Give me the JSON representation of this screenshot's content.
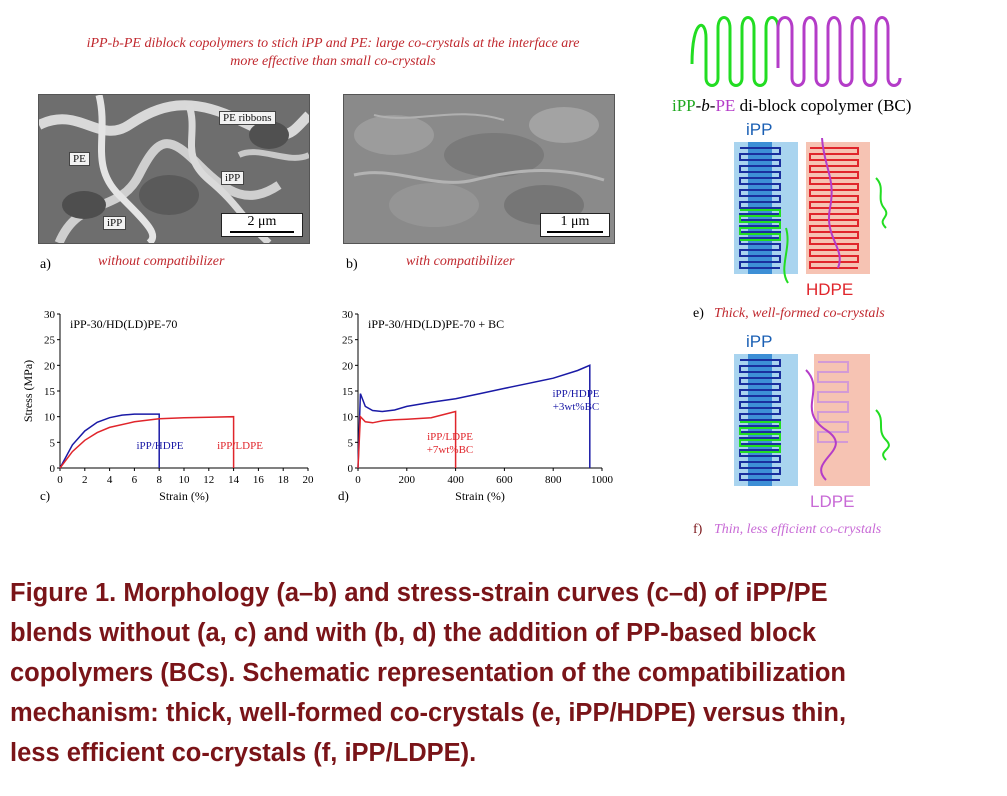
{
  "header": {
    "line1": "iPP-b-PE diblock copolymers to stich iPP and PE: large co-crystals at the interface are",
    "line2": "more effective than small co-crystals"
  },
  "sem_a": {
    "panel": "a)",
    "caption": "without compatibilizer",
    "labels": [
      "PE ribbons",
      "PE",
      "iPP",
      "iPP"
    ],
    "scale": "2 μm"
  },
  "sem_b": {
    "panel": "b)",
    "caption": "with compatibilizer",
    "scale": "1 μm"
  },
  "chart_data": [
    {
      "type": "line",
      "panel": "c)",
      "title": "iPP-30/HD(LD)PE-70",
      "xlabel": "Strain (%)",
      "ylabel": "Stress (MPa)",
      "xlim": [
        0,
        20
      ],
      "ylim": [
        0,
        30
      ],
      "xticks": [
        "0",
        "2",
        "4",
        "6",
        "8",
        "10",
        "12",
        "14",
        "16",
        "18",
        "20"
      ],
      "yticks": [
        "0",
        "5",
        "10",
        "15",
        "20",
        "25",
        "30"
      ],
      "series": [
        {
          "name": "iPP/HDPE",
          "color": "#1a1aa6",
          "x": [
            0,
            1,
            2,
            3,
            4,
            5,
            6,
            7,
            8,
            8
          ],
          "y": [
            0,
            4.5,
            7.2,
            8.9,
            9.8,
            10.3,
            10.5,
            10.5,
            10.5,
            0
          ]
        },
        {
          "name": "iPP/LDPE",
          "color": "#e0252b",
          "x": [
            0,
            1,
            2,
            3,
            4,
            6,
            8,
            10,
            12,
            14,
            14
          ],
          "y": [
            0,
            3.2,
            5.4,
            6.9,
            7.9,
            9,
            9.6,
            9.8,
            9.9,
            10,
            0
          ]
        }
      ],
      "annotations": [
        {
          "text": "iPP/HDPE",
          "color": "#1a1aa6"
        },
        {
          "text": "iPP/LDPE",
          "color": "#e0252b"
        }
      ]
    },
    {
      "type": "line",
      "panel": "d)",
      "title": "iPP-30/HD(LD)PE-70 + BC",
      "xlabel": "Strain (%)",
      "xlim": [
        0,
        1000
      ],
      "ylim": [
        0,
        30
      ],
      "xticks": [
        "0",
        "200",
        "400",
        "600",
        "800",
        "1000"
      ],
      "yticks": [
        "0",
        "5",
        "10",
        "15",
        "20",
        "25",
        "30"
      ],
      "series": [
        {
          "name": "iPP/HDPE +3wt%BC",
          "color": "#1a1aa6",
          "x": [
            0,
            10,
            30,
            60,
            100,
            150,
            200,
            300,
            400,
            500,
            600,
            700,
            800,
            900,
            950,
            950
          ],
          "y": [
            0,
            14.5,
            12,
            11.2,
            11,
            11.3,
            12,
            12.8,
            13.5,
            14.5,
            15.5,
            16.5,
            17.5,
            19,
            20,
            0
          ]
        },
        {
          "name": "iPP/LDPE +7wt%BC",
          "color": "#e0252b",
          "x": [
            0,
            10,
            30,
            60,
            100,
            150,
            200,
            300,
            400,
            400
          ],
          "y": [
            0,
            10,
            9,
            8.8,
            9.2,
            9.4,
            9.5,
            9.8,
            11,
            0
          ]
        }
      ],
      "annotations": [
        {
          "text": "iPP/HDPE",
          "color": "#1a1aa6"
        },
        {
          "text": "+3wt%BC",
          "color": "#1a1aa6"
        },
        {
          "text": "iPP/LDPE",
          "color": "#e0252b"
        },
        {
          "text": "+7wt%BC",
          "color": "#e0252b"
        }
      ]
    }
  ],
  "schematic": {
    "title_ipp": "iPP",
    "title_b": "-b-",
    "title_pe": "PE",
    "title_rest": " di-block copolymer (BC)",
    "e_ipp": "iPP",
    "e_pe": "HDPE",
    "e_panel": "e)",
    "e_caption": "Thick, well-formed co-crystals",
    "f_ipp": "iPP",
    "f_pe": "LDPE",
    "f_panel": "f)",
    "f_caption": "Thin, less efficient co-crystals"
  },
  "figure_caption": {
    "line1": "Figure 1. Morphology (a–b) and stress-strain curves (c–d) of iPP/PE",
    "line2": "blends without (a, c) and with (b, d) the addition of PP-based block",
    "line3": "copolymers (BCs). Schematic representation of the compatibilization",
    "line4": "mechanism: thick, well-formed co-crystals (e, iPP/HDPE) versus thin,",
    "line5": "less efficient co-crystals (f, iPP/LDPE)."
  }
}
